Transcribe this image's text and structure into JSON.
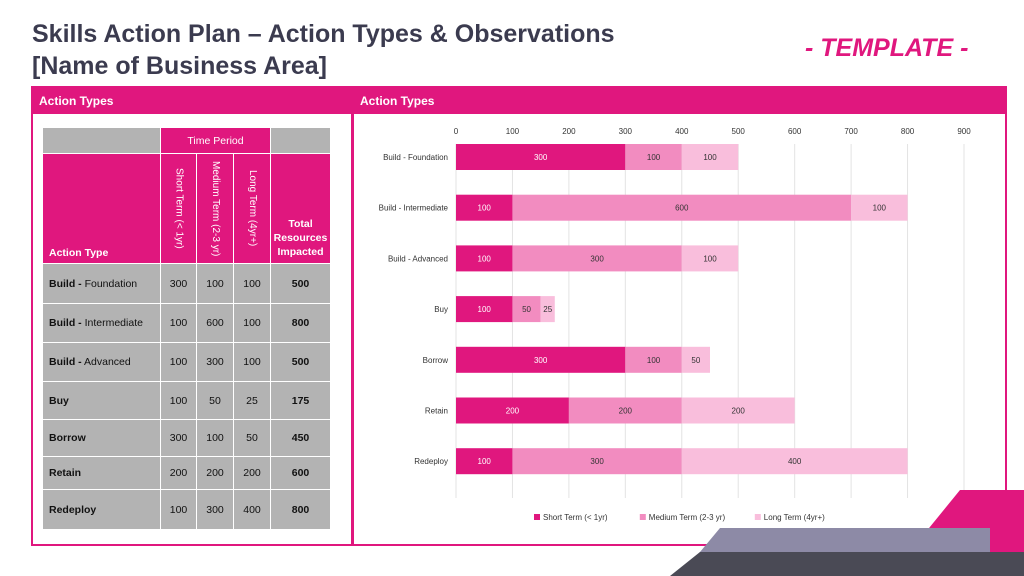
{
  "title_line1": "Skills Action Plan – Action Types & Observations",
  "title_line2": "[Name of Business Area]",
  "template_label": "- TEMPLATE -",
  "left_panel": {
    "header": "Action Types"
  },
  "right_panel": {
    "header": "Action Types"
  },
  "table": {
    "time_period_label": "Time Period",
    "action_type_header": "Action Type",
    "col_headers": [
      "Short Term (< 1yr)",
      "Medium Term (2-3 yr)",
      "Long Term (4yr+)"
    ],
    "total_header": "Total Resources Impacted",
    "rows": [
      {
        "bold": "Build -",
        "rest": " Foundation",
        "values": [
          "300",
          "100",
          "100"
        ],
        "total": "500"
      },
      {
        "bold": "Build -",
        "rest": " Intermediate",
        "values": [
          "100",
          "600",
          "100"
        ],
        "total": "800"
      },
      {
        "bold": "Build -",
        "rest": " Advanced",
        "values": [
          "100",
          "300",
          "100"
        ],
        "total": "500"
      },
      {
        "bold": "Buy",
        "rest": "",
        "values": [
          "100",
          "50",
          "25"
        ],
        "total": "175"
      },
      {
        "bold": "Borrow",
        "rest": "",
        "values": [
          "300",
          "100",
          "50"
        ],
        "total": "450"
      },
      {
        "bold": "Retain",
        "rest": "",
        "values": [
          "200",
          "200",
          "200"
        ],
        "total": "600"
      },
      {
        "bold": "Redeploy",
        "rest": "",
        "values": [
          "100",
          "300",
          "400"
        ],
        "total": "800"
      }
    ]
  },
  "colors": {
    "accent": "#e0177e",
    "short": "#e0177e",
    "medium": "#f28cc0",
    "long": "#f9bedc",
    "table_grey": "#b3b3b3"
  },
  "chart_data": {
    "type": "bar",
    "orientation": "horizontal",
    "stacked": true,
    "categories": [
      "Build - Foundation",
      "Build - Intermediate",
      "Build - Advanced",
      "Buy",
      "Borrow",
      "Retain",
      "Redeploy"
    ],
    "series": [
      {
        "name": "Short Term (< 1yr)",
        "values": [
          300,
          100,
          100,
          100,
          300,
          200,
          100
        ]
      },
      {
        "name": "Medium Term (2-3 yr)",
        "values": [
          100,
          600,
          300,
          50,
          100,
          200,
          300
        ]
      },
      {
        "name": "Long Term (4yr+)",
        "values": [
          100,
          100,
          100,
          25,
          50,
          200,
          400
        ]
      }
    ],
    "xlim": [
      0,
      900
    ],
    "xticks": [
      0,
      100,
      200,
      300,
      400,
      500,
      600,
      700,
      800,
      900
    ],
    "axis_position": "top",
    "grid": true,
    "legend": "bottom",
    "title": "",
    "xlabel": "",
    "ylabel": ""
  }
}
